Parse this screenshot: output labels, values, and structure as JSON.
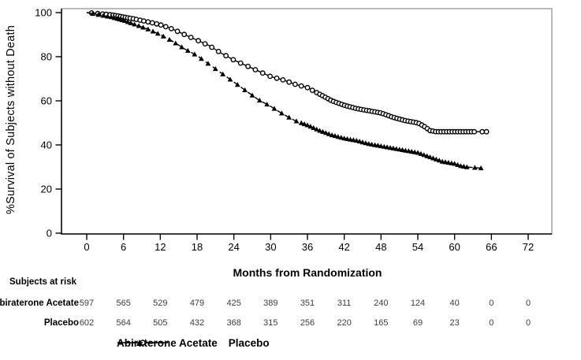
{
  "chart_data": {
    "type": "line",
    "subtype": "kaplan-meier-survival",
    "title": "",
    "xlabel": "Months from Randomization",
    "ylabel": "%Survival of Subjects without Death",
    "xlim": [
      0,
      72
    ],
    "ylim": [
      0,
      100
    ],
    "x_ticks": [
      0,
      6,
      12,
      18,
      24,
      30,
      36,
      42,
      48,
      54,
      60,
      66,
      72
    ],
    "y_ticks": [
      0,
      20,
      40,
      60,
      80,
      100
    ],
    "grid": false,
    "frame_color": "#8c8c8c",
    "axis_color": "#000000",
    "series": [
      {
        "name": "Abiraterone Acetate",
        "line": "solid",
        "marker": "circle-open",
        "color": "#000000",
        "x": [
          0,
          1,
          2,
          4,
          6,
          8,
          10,
          12,
          14,
          16,
          18,
          20,
          22,
          24,
          26,
          28,
          30,
          32,
          34,
          36,
          38,
          40,
          42,
          44,
          46,
          48,
          50,
          52,
          54,
          55,
          56,
          57,
          65.2
        ],
        "y": [
          100,
          99.8,
          99.5,
          99,
          98,
          97,
          95.8,
          94.5,
          92.5,
          90,
          87.5,
          85,
          81.5,
          78.5,
          76,
          73.5,
          71,
          69.5,
          67.5,
          66,
          63,
          60,
          58,
          56.5,
          55.5,
          54.5,
          52.5,
          51,
          50,
          48.5,
          46.5,
          46,
          46
        ],
        "censor_marks": {
          "sparse": [
            0.8,
            1.8,
            2.6,
            3.2,
            3.8,
            4.3,
            4.7,
            5.1,
            5.5,
            5.9,
            6.3,
            6.7,
            7.1,
            7.6,
            8.1,
            8.7,
            9.3,
            10,
            10.7,
            11.4,
            12.1,
            12.9,
            13.8,
            14.8,
            15.9,
            17,
            18.2,
            19.3,
            20.4,
            21.5,
            22.7,
            23.9,
            25.1,
            26.3,
            27.5,
            28.7,
            29.9,
            31,
            32,
            33,
            34,
            35,
            36,
            36.8,
            37.5
          ],
          "dense": {
            "from": 38,
            "to": 63.5,
            "step": 0.45
          },
          "end": [
            64.5,
            65.2
          ]
        }
      },
      {
        "name": "Placebo",
        "line": "dashed",
        "marker": "triangle-filled",
        "color": "#000000",
        "x": [
          0,
          1,
          2,
          4,
          6,
          8,
          10,
          12,
          14,
          16,
          18,
          20,
          22,
          24,
          26,
          28,
          30,
          32,
          34,
          36,
          38,
          40,
          42,
          44,
          46,
          48,
          50,
          52,
          54,
          56,
          58,
          60,
          61,
          62,
          64.3
        ],
        "y": [
          100,
          99.5,
          99,
          98,
          96.5,
          94.5,
          92.5,
          90,
          87,
          83.5,
          80.5,
          76.5,
          72.5,
          68.5,
          64.5,
          60.5,
          57.5,
          54,
          51,
          49,
          46.5,
          44.5,
          43,
          42,
          40.5,
          39.5,
          38.5,
          37.5,
          36.5,
          34.5,
          32.5,
          31.5,
          30.5,
          30,
          29.5
        ],
        "censor_marks": {
          "sparse": [
            1,
            1.9,
            2.7,
            3.4,
            4,
            4.5,
            5,
            5.4,
            5.8,
            6.2,
            6.7,
            7.2,
            7.8,
            8.5,
            9.2,
            10,
            10.8,
            11.6,
            12.5,
            13.5,
            14.5,
            15.5,
            16.5,
            17.6,
            18.7,
            19.8,
            21,
            22.2,
            23.4,
            24.6,
            25.8,
            27,
            28.2,
            29.4,
            30.6,
            31.8,
            33,
            34.2
          ],
          "dense": {
            "from": 35,
            "to": 62,
            "step": 0.5
          },
          "end": [
            63.3,
            64.3
          ]
        }
      }
    ],
    "at_risk": {
      "header": "Subjects at risk",
      "time_points": [
        0,
        6,
        12,
        18,
        24,
        30,
        36,
        42,
        48,
        54,
        60,
        66,
        72
      ],
      "rows": [
        {
          "label": "Abiraterone Acetate",
          "counts": [
            597,
            565,
            529,
            479,
            425,
            389,
            351,
            311,
            240,
            124,
            40,
            0,
            0
          ]
        },
        {
          "label": "Placebo",
          "counts": [
            602,
            564,
            505,
            432,
            368,
            315,
            256,
            220,
            165,
            69,
            23,
            0,
            0
          ]
        }
      ]
    },
    "legend": {
      "position": "bottom-center",
      "items": [
        {
          "label": "Abiraterone Acetate",
          "line": "solid",
          "marker": "circle-open"
        },
        {
          "label": "Placebo",
          "line": "dashed",
          "marker": "triangle-filled"
        }
      ]
    }
  }
}
